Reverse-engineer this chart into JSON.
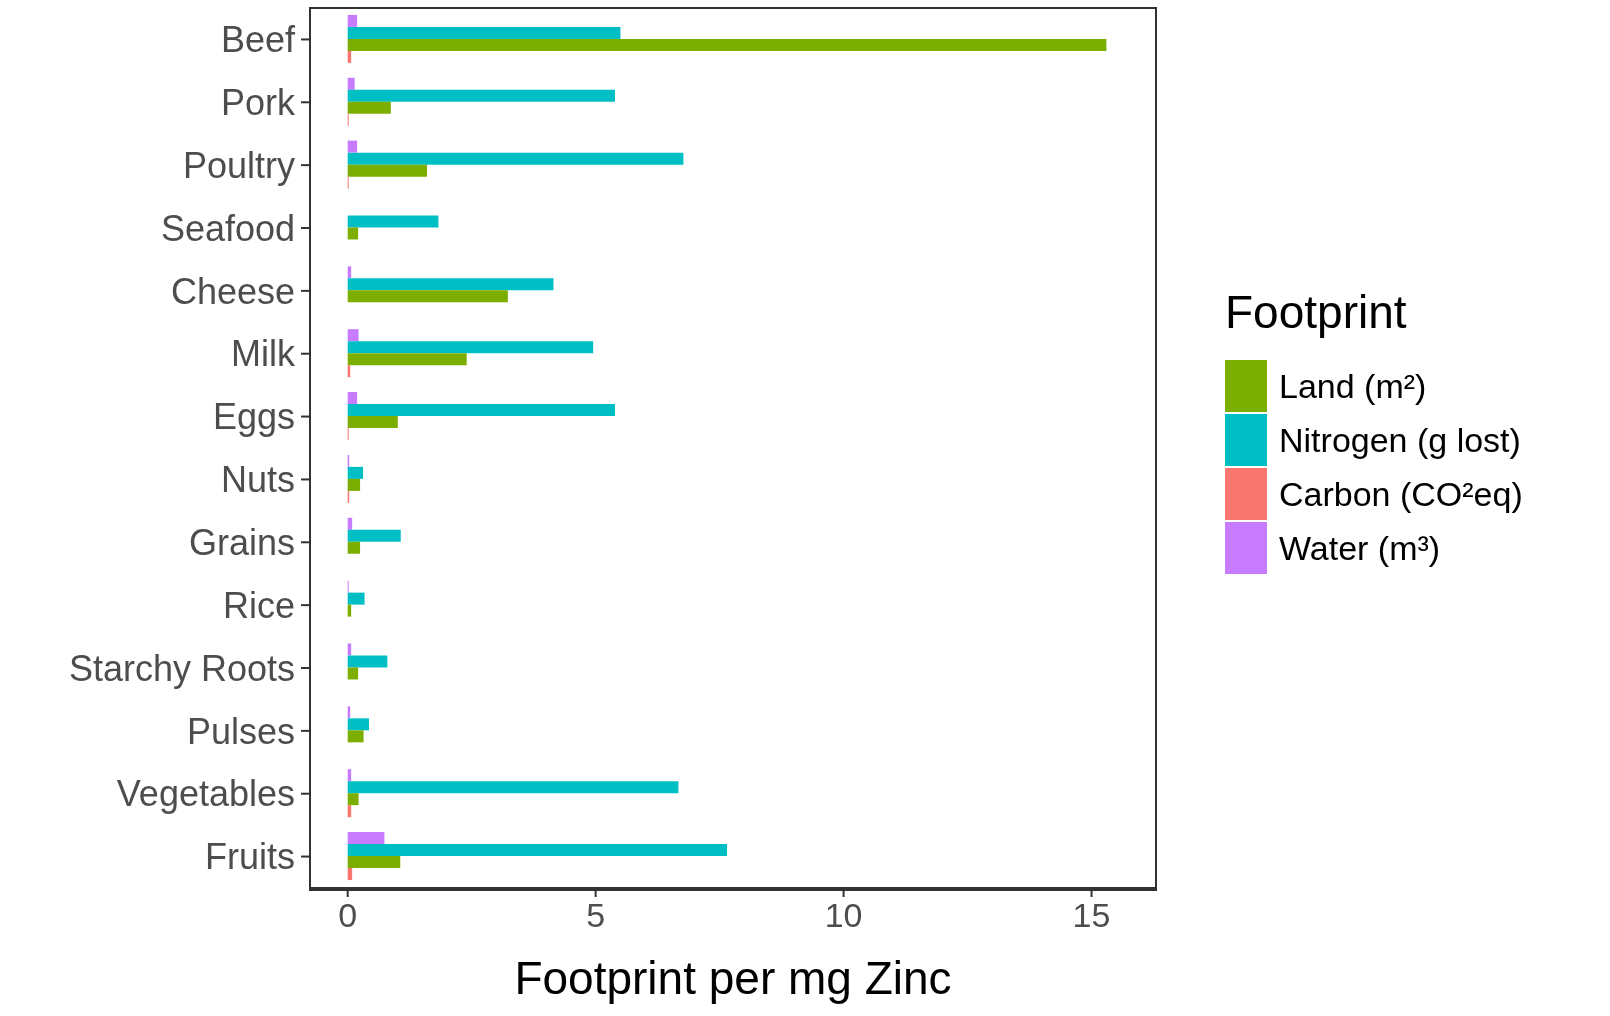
{
  "chart_data": {
    "type": "bar",
    "orientation": "horizontal",
    "xlabel": "Footprint per mg Zinc",
    "legend_title": "Footprint",
    "legend": "right",
    "grid": false,
    "categories": [
      "Beef",
      "Pork",
      "Poultry",
      "Seafood",
      "Cheese",
      "Milk",
      "Eggs",
      "Nuts",
      "Grains",
      "Rice",
      "Starchy Roots",
      "Pulses",
      "Vegetables",
      "Fruits"
    ],
    "xlim": [
      -0.76,
      16.3
    ],
    "xticks": [
      0,
      5,
      10,
      15
    ],
    "series": [
      {
        "name": "Land (m²)",
        "color": "#7cae00",
        "values": [
          15.3,
          0.87,
          1.6,
          0.21,
          3.23,
          2.4,
          1.01,
          0.25,
          0.25,
          0.07,
          0.21,
          0.32,
          0.22,
          1.06
        ]
      },
      {
        "name": "Nitrogen (g lost)",
        "color": "#00bfc4",
        "values": [
          5.5,
          5.39,
          6.77,
          1.83,
          4.15,
          4.95,
          5.39,
          0.31,
          1.07,
          0.34,
          0.8,
          0.43,
          6.67,
          7.65
        ]
      },
      {
        "name": "Carbon (CO²eq)",
        "color": "#f8766d",
        "values": [
          0.07,
          0.02,
          0.02,
          null,
          null,
          0.05,
          0.02,
          0.03,
          null,
          0,
          0,
          0,
          0.07,
          0.09
        ]
      },
      {
        "name": "Water (m³)",
        "color": "#c77cff",
        "values": [
          0.19,
          0.14,
          0.19,
          null,
          0.07,
          0.22,
          0.19,
          0.03,
          0.09,
          0.02,
          0.07,
          0.05,
          0.07,
          0.74
        ]
      }
    ]
  }
}
